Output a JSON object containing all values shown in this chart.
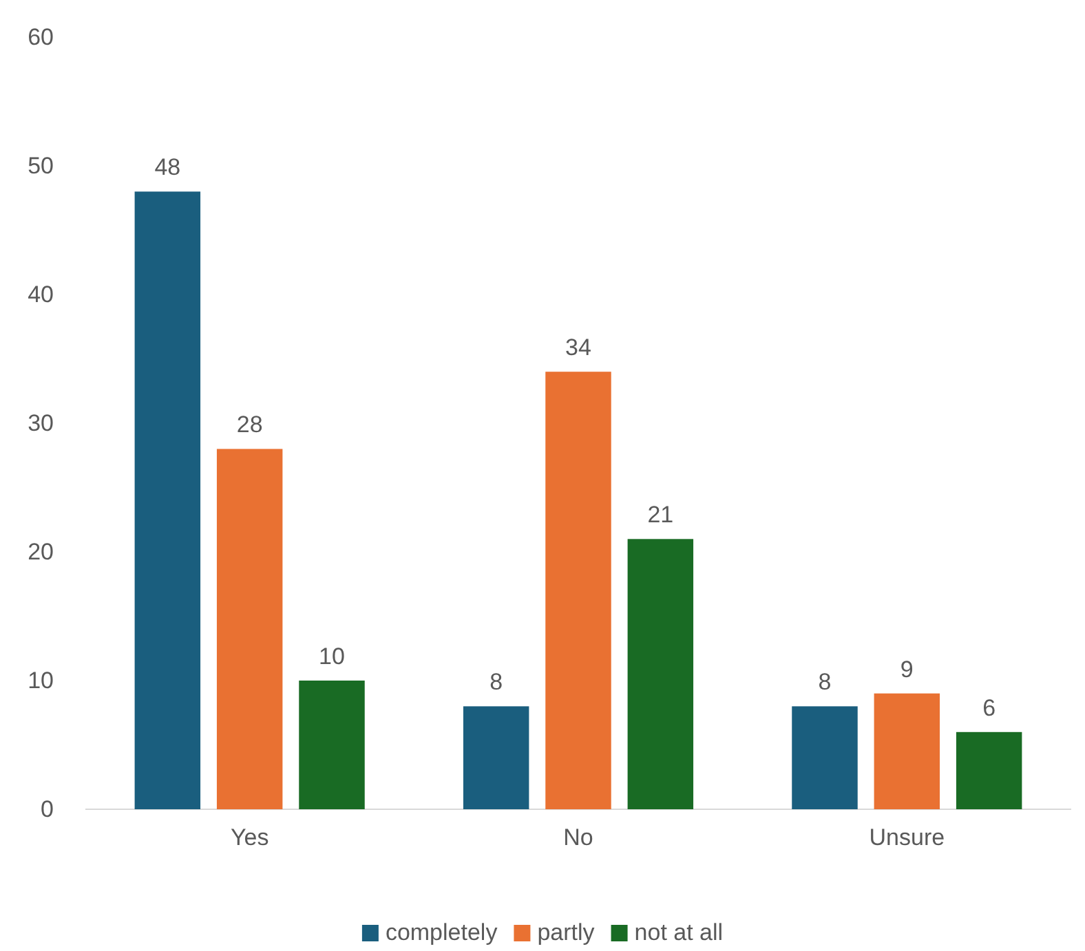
{
  "chart_data": {
    "type": "bar",
    "categories": [
      "Yes",
      "No",
      "Unsure"
    ],
    "series": [
      {
        "name": "completely",
        "color": "#1a5e7e",
        "values": [
          48,
          8,
          8
        ]
      },
      {
        "name": "partly",
        "color": "#e97132",
        "values": [
          28,
          34,
          9
        ]
      },
      {
        "name": "not at all",
        "color": "#196b24",
        "values": [
          10,
          21,
          6
        ]
      }
    ],
    "ylim": [
      0,
      60
    ],
    "yticks": [
      0,
      10,
      20,
      30,
      40,
      50,
      60
    ],
    "grid": false,
    "legend": "bottom",
    "data_labels": true
  }
}
